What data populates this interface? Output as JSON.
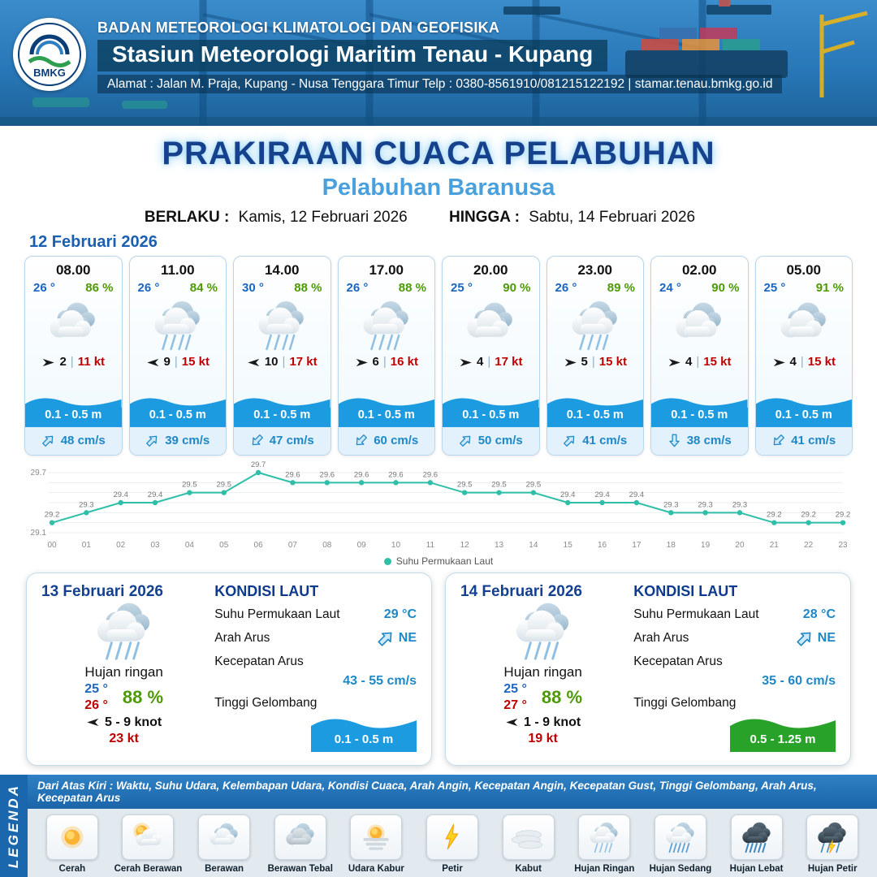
{
  "header": {
    "logo_text": "BMKG",
    "org": "BADAN METEOROLOGI KLIMATOLOGI DAN GEOFISIKA",
    "station": "Stasiun Meteorologi Maritim Tenau - Kupang",
    "address": "Alamat : Jalan M. Praja, Kupang - Nusa Tenggara Timur Telp : 0380-8561910/081215122192  | stamar.tenau.bmkg.go.id"
  },
  "title": {
    "main": "PRAKIRAAN CUACA PELABUHAN",
    "subtitle": "Pelabuhan Baranusa",
    "berlaku_label": "BERLAKU :",
    "berlaku_value": "Kamis, 12 Februari 2026",
    "hingga_label": "HINGGA :",
    "hingga_value": "Sabtu, 14 Februari 2026"
  },
  "hourly": {
    "date": "12 Februari 2026",
    "sep": "|",
    "cards": [
      {
        "time": "08.00",
        "temp": "26 °",
        "humidity": "86 %",
        "icon": "berawan",
        "wind_dir": "E",
        "wind_val": "2",
        "wind_gust": "11 kt",
        "wave": "0.1 - 0.5 m",
        "current_dir": "NE",
        "current": "48 cm/s"
      },
      {
        "time": "11.00",
        "temp": "26 °",
        "humidity": "84 %",
        "icon": "hujan-ringan",
        "wind_dir": "W",
        "wind_val": "9",
        "wind_gust": "15 kt",
        "wave": "0.1 - 0.5 m",
        "current_dir": "NE",
        "current": "39 cm/s"
      },
      {
        "time": "14.00",
        "temp": "30 °",
        "humidity": "88 %",
        "icon": "hujan-ringan",
        "wind_dir": "W",
        "wind_val": "10",
        "wind_gust": "17 kt",
        "wave": "0.1 - 0.5 m",
        "current_dir": "SW",
        "current": "47 cm/s"
      },
      {
        "time": "17.00",
        "temp": "26 °",
        "humidity": "88 %",
        "icon": "hujan-ringan",
        "wind_dir": "E",
        "wind_val": "6",
        "wind_gust": "16 kt",
        "wave": "0.1 - 0.5 m",
        "current_dir": "SW",
        "current": "60 cm/s"
      },
      {
        "time": "20.00",
        "temp": "25 °",
        "humidity": "90 %",
        "icon": "berawan",
        "wind_dir": "E",
        "wind_val": "4",
        "wind_gust": "17 kt",
        "wave": "0.1 - 0.5 m",
        "current_dir": "NE",
        "current": "50 cm/s"
      },
      {
        "time": "23.00",
        "temp": "26 °",
        "humidity": "89 %",
        "icon": "hujan-ringan",
        "wind_dir": "E",
        "wind_val": "5",
        "wind_gust": "15 kt",
        "wave": "0.1 - 0.5 m",
        "current_dir": "NE",
        "current": "41 cm/s"
      },
      {
        "time": "02.00",
        "temp": "24 °",
        "humidity": "90 %",
        "icon": "berawan",
        "wind_dir": "E",
        "wind_val": "4",
        "wind_gust": "15 kt",
        "wave": "0.1 - 0.5 m",
        "current_dir": "S",
        "current": "38 cm/s"
      },
      {
        "time": "05.00",
        "temp": "25 °",
        "humidity": "91 %",
        "icon": "berawan",
        "wind_dir": "E",
        "wind_val": "4",
        "wind_gust": "15 kt",
        "wave": "0.1 - 0.5 m",
        "current_dir": "SW",
        "current": "41 cm/s"
      }
    ]
  },
  "chart_data": {
    "type": "line",
    "series_label": "Suhu Permukaan Laut",
    "x": [
      "00",
      "01",
      "02",
      "03",
      "04",
      "05",
      "06",
      "07",
      "08",
      "09",
      "10",
      "11",
      "12",
      "13",
      "14",
      "15",
      "16",
      "17",
      "18",
      "19",
      "20",
      "21",
      "22",
      "23"
    ],
    "values": [
      29.2,
      29.3,
      29.4,
      29.4,
      29.5,
      29.5,
      29.7,
      29.6,
      29.6,
      29.6,
      29.6,
      29.6,
      29.5,
      29.5,
      29.5,
      29.4,
      29.4,
      29.4,
      29.3,
      29.3,
      29.3,
      29.2,
      29.2,
      29.2
    ],
    "ylim": [
      29.1,
      29.7
    ],
    "line_color": "#2fbfa8",
    "grid": true,
    "legend_position": "bottom"
  },
  "daily": [
    {
      "date": "13 Februari 2026",
      "icon": "hujan-ringan",
      "condition": "Hujan ringan",
      "temp_min": "25 °",
      "temp_max": "26 °",
      "humidity": "88 %",
      "wind_dir": "W",
      "wind_range": "5 - 9 knot",
      "gust": "23 kt",
      "sea": {
        "title": "KONDISI LAUT",
        "sst_label": "Suhu Permukaan Laut",
        "sst": "29 °C",
        "current_dir_label": "Arah Arus",
        "current_dir": "NE",
        "current_speed_label": "Kecepatan Arus",
        "current_speed": "43 - 55 cm/s",
        "wave_label": "Tinggi Gelombang",
        "wave": "0.1 - 0.5 m",
        "wave_color": "#1d9be0"
      }
    },
    {
      "date": "14 Februari 2026",
      "icon": "hujan-ringan",
      "condition": "Hujan ringan",
      "temp_min": "25 °",
      "temp_max": "27 °",
      "humidity": "88 %",
      "wind_dir": "W",
      "wind_range": "1 - 9 knot",
      "gust": "19 kt",
      "sea": {
        "title": "KONDISI LAUT",
        "sst_label": "Suhu Permukaan Laut",
        "sst": "28 °C",
        "current_dir_label": "Arah Arus",
        "current_dir": "NE",
        "current_speed_label": "Kecepatan Arus",
        "current_speed": "35 - 60 cm/s",
        "wave_label": "Tinggi Gelombang",
        "wave": "0.5 - 1.25 m",
        "wave_color": "#28a228"
      }
    }
  ],
  "legend": {
    "title": "LEGENDA",
    "description": "Dari Atas Kiri : Waktu, Suhu Udara, Kelembapan Udara, Kondisi Cuaca, Arah Angin, Kecepatan Angin, Kecepatan Gust, Tinggi Gelombang, Arah Arus, Kecepatan Arus",
    "items": [
      {
        "label": "Cerah",
        "icon": "cerah"
      },
      {
        "label": "Cerah Berawan",
        "icon": "cerah-berawan"
      },
      {
        "label": "Berawan",
        "icon": "berawan"
      },
      {
        "label": "Berawan Tebal",
        "icon": "berawan-tebal"
      },
      {
        "label": "Udara Kabur",
        "icon": "udara-kabur"
      },
      {
        "label": "Petir",
        "icon": "petir"
      },
      {
        "label": "Kabut",
        "icon": "kabut"
      },
      {
        "label": "Hujan Ringan",
        "icon": "hujan-ringan"
      },
      {
        "label": "Hujan Sedang",
        "icon": "hujan-sedang"
      },
      {
        "label": "Hujan Lebat",
        "icon": "hujan-lebat"
      },
      {
        "label": "Hujan Petir",
        "icon": "hujan-petir"
      }
    ]
  },
  "colors": {
    "temp_blue": "#1a66c2",
    "humidity_green": "#4e9a06",
    "gust_red": "#c00000",
    "wave_blue": "#1d9be0",
    "wave_green": "#28a228",
    "title_navy": "#16418c",
    "subtitle_blue": "#4aa0dc",
    "sst_line": "#2fbfa8",
    "header_blue": "#2877b8"
  }
}
